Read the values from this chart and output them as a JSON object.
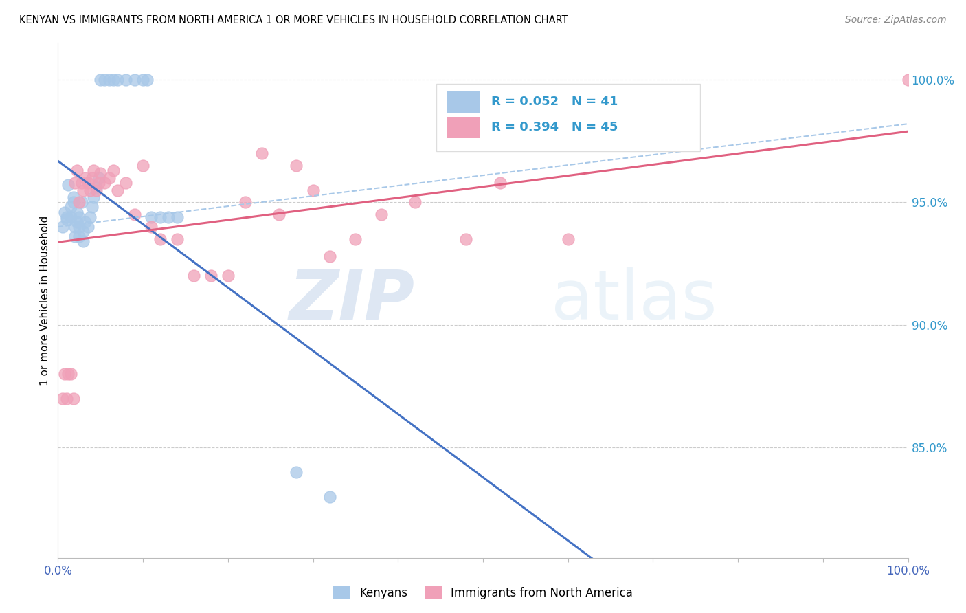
{
  "title": "KENYAN VS IMMIGRANTS FROM NORTH AMERICA 1 OR MORE VEHICLES IN HOUSEHOLD CORRELATION CHART",
  "source": "Source: ZipAtlas.com",
  "ylabel": "1 or more Vehicles in Household",
  "legend_label1": "Kenyans",
  "legend_label2": "Immigrants from North America",
  "R1": 0.052,
  "N1": 41,
  "R2": 0.394,
  "N2": 45,
  "blue_color": "#a8c8e8",
  "pink_color": "#f0a0b8",
  "blue_line_color": "#4472c4",
  "pink_line_color": "#e06080",
  "dashed_color": "#a8c8e8",
  "watermark_zip": "ZIP",
  "watermark_atlas": "atlas",
  "y_tick_labels": [
    "100.0%",
    "95.0%",
    "90.0%",
    "85.0%"
  ],
  "y_tick_values": [
    1.0,
    0.95,
    0.9,
    0.85
  ],
  "blue_x": [
    0.005,
    0.008,
    0.01,
    0.01,
    0.012,
    0.015,
    0.015,
    0.018,
    0.018,
    0.02,
    0.02,
    0.022,
    0.022,
    0.025,
    0.025,
    0.025,
    0.028,
    0.03,
    0.03,
    0.032,
    0.035,
    0.038,
    0.04,
    0.042,
    0.045,
    0.048,
    0.05,
    0.055,
    0.06,
    0.065,
    0.07,
    0.08,
    0.09,
    0.1,
    0.105,
    0.11,
    0.12,
    0.13,
    0.14,
    0.28,
    0.32
  ],
  "blue_y": [
    0.94,
    0.946,
    0.943,
    0.944,
    0.957,
    0.944,
    0.948,
    0.95,
    0.952,
    0.936,
    0.94,
    0.942,
    0.946,
    0.936,
    0.94,
    0.944,
    0.95,
    0.934,
    0.938,
    0.942,
    0.94,
    0.944,
    0.948,
    0.952,
    0.956,
    0.96,
    1.0,
    1.0,
    1.0,
    1.0,
    1.0,
    1.0,
    1.0,
    1.0,
    1.0,
    0.944,
    0.944,
    0.944,
    0.944,
    0.84,
    0.83
  ],
  "pink_x": [
    0.005,
    0.008,
    0.01,
    0.012,
    0.015,
    0.018,
    0.02,
    0.022,
    0.025,
    0.028,
    0.03,
    0.032,
    0.035,
    0.038,
    0.04,
    0.042,
    0.045,
    0.048,
    0.05,
    0.055,
    0.06,
    0.065,
    0.07,
    0.08,
    0.09,
    0.1,
    0.11,
    0.12,
    0.14,
    0.16,
    0.18,
    0.2,
    0.22,
    0.24,
    0.26,
    0.28,
    0.3,
    0.32,
    0.35,
    0.38,
    0.42,
    0.48,
    0.52,
    0.6,
    1.0
  ],
  "pink_y": [
    0.87,
    0.88,
    0.87,
    0.88,
    0.88,
    0.87,
    0.958,
    0.963,
    0.95,
    0.958,
    0.955,
    0.96,
    0.958,
    0.955,
    0.96,
    0.963,
    0.955,
    0.958,
    0.962,
    0.958,
    0.96,
    0.963,
    0.955,
    0.958,
    0.945,
    0.965,
    0.94,
    0.935,
    0.935,
    0.92,
    0.92,
    0.92,
    0.95,
    0.97,
    0.945,
    0.965,
    0.955,
    0.928,
    0.935,
    0.945,
    0.95,
    0.935,
    0.958,
    0.935,
    1.0
  ],
  "xlim": [
    0.0,
    1.0
  ],
  "ylim": [
    0.805,
    1.015
  ]
}
